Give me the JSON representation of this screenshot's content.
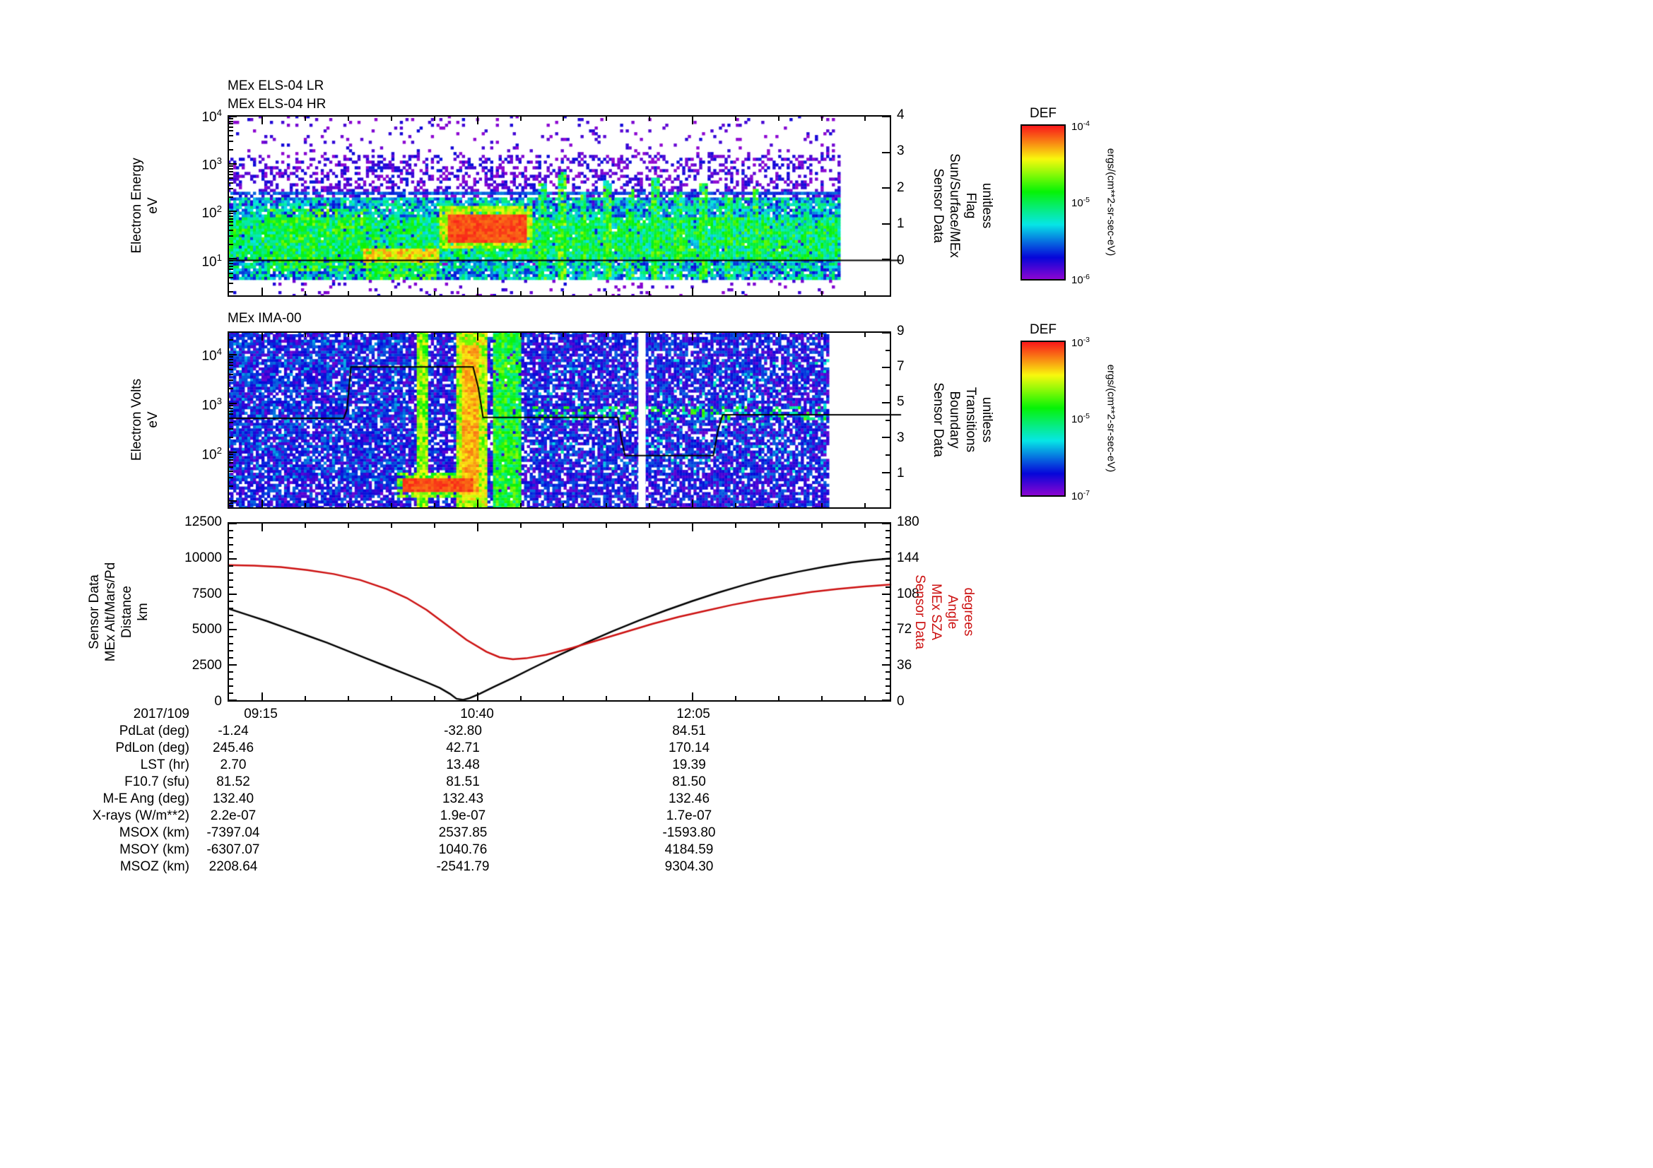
{
  "colors": {
    "red": "#cc1111",
    "black": "#000000"
  },
  "x_axis": {
    "date_label": "2017/109",
    "ticks": [
      {
        "label": "09:15",
        "x": 0.05
      },
      {
        "label": "10:40",
        "x": 0.376
      },
      {
        "label": "12:05",
        "x": 0.702
      }
    ],
    "minor_step": 0.0652
  },
  "chart_data": [
    {
      "id": "els",
      "type": "heatmap",
      "title_lines": [
        "MEx ELS-04 LR",
        "MEx ELS-04 HR"
      ],
      "ylabel_lines": [
        "Electron Energy",
        "eV"
      ],
      "y_log_range": [
        0.23,
        4.0
      ],
      "y_tick_exps": [
        4,
        3,
        2,
        1
      ],
      "data_end_x": 0.925,
      "seed": 1234,
      "right_axis": {
        "label_lines": [
          "Sensor Data",
          "Sun/Surface/MEx",
          "Flag",
          "unitless"
        ],
        "range": [
          -1,
          4
        ],
        "major_ticks": [
          4,
          3,
          2,
          1,
          0
        ],
        "minor_ticks": []
      },
      "overlay_line": {
        "points": [
          [
            0,
            0
          ],
          [
            1.015,
            0
          ]
        ]
      },
      "features": [
        {
          "x0": 0,
          "x1": 0.925,
          "y0": 0,
          "y1": 1,
          "base": 0.05,
          "rand": 0.18,
          "density": 0.08
        },
        {
          "x0": 0,
          "x1": 0.925,
          "y0": 0.5,
          "y1": 0.78,
          "base": 0.07,
          "rand": 0.2,
          "density": 0.3
        },
        {
          "x0": 0,
          "x1": 0.925,
          "y0": 0.1,
          "y1": 0.55,
          "base": 0.33,
          "rand": 0.4,
          "density": 0.9
        },
        {
          "x0": 0,
          "x1": 0.925,
          "y0": 0.2,
          "y1": 0.44,
          "base": 0.48,
          "rand": 0.35,
          "density": 0.88
        },
        {
          "x0": 0.06,
          "x1": 0.21,
          "y0": 0.14,
          "y1": 0.48,
          "base": 0.55,
          "rand": 0.3,
          "density": 0.55
        },
        {
          "x0": 0,
          "x1": 0.925,
          "y0": 0.555,
          "y1": 0.575,
          "base": 0.22,
          "rand": 0.12,
          "density": 0.95
        },
        {
          "x0": 0.21,
          "x1": 0.315,
          "y0": 0.1,
          "y1": 0.185,
          "base": 0.55,
          "rand": 0.3,
          "density": 0.9
        },
        {
          "x0": 0.205,
          "x1": 0.318,
          "y0": 0.185,
          "y1": 0.26,
          "base": 0.8,
          "rand": 0.2,
          "density": 0.95
        },
        {
          "x0": 0.32,
          "x1": 0.46,
          "y0": 0.26,
          "y1": 0.5,
          "base": 0.72,
          "rand": 0.25,
          "density": 0.92
        },
        {
          "x0": 0.33,
          "x1": 0.45,
          "y0": 0.3,
          "y1": 0.46,
          "base": 0.95,
          "rand": 0.08,
          "density": 1
        },
        {
          "x0": 0.468,
          "x1": 0.482,
          "y0": 0.1,
          "y1": 0.62,
          "base": 0.5,
          "rand": 0.4,
          "density": 0.85
        },
        {
          "x0": 0.498,
          "x1": 0.512,
          "y0": 0.1,
          "y1": 0.68,
          "base": 0.55,
          "rand": 0.4,
          "density": 0.85
        },
        {
          "x0": 0.53,
          "x1": 0.542,
          "y0": 0.1,
          "y1": 0.58,
          "base": 0.5,
          "rand": 0.4,
          "density": 0.8
        },
        {
          "x0": 0.565,
          "x1": 0.578,
          "y0": 0.1,
          "y1": 0.64,
          "base": 0.52,
          "rand": 0.4,
          "density": 0.85
        },
        {
          "x0": 0.6,
          "x1": 0.612,
          "y0": 0.1,
          "y1": 0.6,
          "base": 0.5,
          "rand": 0.4,
          "density": 0.8
        },
        {
          "x0": 0.638,
          "x1": 0.65,
          "y0": 0.1,
          "y1": 0.66,
          "base": 0.52,
          "rand": 0.4,
          "density": 0.85
        },
        {
          "x0": 0.672,
          "x1": 0.684,
          "y0": 0.1,
          "y1": 0.58,
          "base": 0.5,
          "rand": 0.4,
          "density": 0.8
        },
        {
          "x0": 0.71,
          "x1": 0.722,
          "y0": 0.1,
          "y1": 0.62,
          "base": 0.5,
          "rand": 0.4,
          "density": 0.8
        },
        {
          "x0": 0.748,
          "x1": 0.76,
          "y0": 0.1,
          "y1": 0.56,
          "base": 0.48,
          "rand": 0.4,
          "density": 0.8
        },
        {
          "x0": 0.79,
          "x1": 0.8,
          "y0": 0.1,
          "y1": 0.6,
          "base": 0.5,
          "rand": 0.4,
          "density": 0.8
        }
      ]
    },
    {
      "id": "ima",
      "type": "heatmap",
      "title_lines": [
        "MEx IMA-00"
      ],
      "ylabel_lines": [
        "Electron Volts",
        "eV"
      ],
      "y_log_range": [
        0.87,
        4.45
      ],
      "y_tick_exps": [
        4,
        3,
        2
      ],
      "data_end_x": 0.905,
      "gap_x": [
        0.619,
        0.63
      ],
      "seed": 9876,
      "right_axis": {
        "label_lines": [
          "Sensor Data",
          "Boundary",
          "Transitions",
          "unitless"
        ],
        "range": [
          -1,
          9
        ],
        "major_ticks": [
          9,
          7,
          5,
          3,
          1
        ],
        "minor_ticks": [
          8,
          6,
          4,
          2,
          0
        ]
      },
      "overlay_line": {
        "points": [
          [
            0,
            4.1
          ],
          [
            0.175,
            4.1
          ],
          [
            0.18,
            4.6
          ],
          [
            0.186,
            7.0
          ],
          [
            0.37,
            7.0
          ],
          [
            0.378,
            5.8
          ],
          [
            0.385,
            4.15
          ],
          [
            0.588,
            4.15
          ],
          [
            0.593,
            3.0
          ],
          [
            0.599,
            2.0
          ],
          [
            0.732,
            2.0
          ],
          [
            0.739,
            3.4
          ],
          [
            0.746,
            4.3
          ],
          [
            1.015,
            4.3
          ]
        ]
      },
      "features": [
        {
          "x0": 0,
          "x1": 0.905,
          "y0": 0,
          "y1": 1,
          "base": 0.14,
          "rand": 0.22,
          "density": 0.78
        },
        {
          "x0": 0,
          "x1": 0.27,
          "y0": 0.15,
          "y1": 0.95,
          "base": 0.18,
          "rand": 0.28,
          "density": 0.35
        },
        {
          "x0": 0.283,
          "x1": 0.303,
          "y0": 0,
          "y1": 1,
          "base": 0.68,
          "rand": 0.25,
          "density": 1
        },
        {
          "x0": 0.345,
          "x1": 0.39,
          "y0": 0,
          "y1": 1,
          "base": 0.72,
          "rand": 0.25,
          "density": 1
        },
        {
          "x0": 0.353,
          "x1": 0.377,
          "y0": 0.08,
          "y1": 0.92,
          "base": 0.85,
          "rand": 0.12,
          "density": 1
        },
        {
          "x0": 0.398,
          "x1": 0.443,
          "y0": 0,
          "y1": 1,
          "base": 0.55,
          "rand": 0.28,
          "density": 0.95
        },
        {
          "x0": 0.255,
          "x1": 0.38,
          "y0": 0.06,
          "y1": 0.2,
          "base": 0.65,
          "rand": 0.3,
          "density": 0.85
        },
        {
          "x0": 0.262,
          "x1": 0.372,
          "y0": 0.1,
          "y1": 0.165,
          "base": 0.95,
          "rand": 0.08,
          "density": 1
        },
        {
          "x0": 0.46,
          "x1": 0.9,
          "y0": 0.5,
          "y1": 0.575,
          "base": 0.5,
          "rand": 0.3,
          "density": 0.3
        },
        {
          "x0": 0.46,
          "x1": 0.905,
          "y0": 0.2,
          "y1": 0.85,
          "base": 0.28,
          "rand": 0.3,
          "density": 0.1
        }
      ]
    },
    {
      "id": "eph",
      "type": "line",
      "left_axis": {
        "label_lines": [
          "Sensor Data",
          "MEx Alt/Mars/Pd",
          "Distance",
          "km"
        ],
        "range": [
          0,
          12500
        ],
        "major_ticks": [
          12500,
          10000,
          7500,
          5000,
          2500,
          0
        ],
        "minor_step": 500
      },
      "right_axis": {
        "label_lines": [
          "Sensor Data",
          "MEx SZA",
          "Angle",
          "degrees"
        ],
        "range": [
          0,
          180
        ],
        "major_ticks": [
          180,
          144,
          108,
          72,
          36,
          0
        ],
        "minor_step": 7.2,
        "color": "#cc1111"
      },
      "series": [
        {
          "name": "MEx altitude (km)",
          "axis": "left",
          "color": "#000000",
          "points": [
            [
              0,
              6500
            ],
            [
              0.03,
              6050
            ],
            [
              0.06,
              5600
            ],
            [
              0.09,
              5100
            ],
            [
              0.12,
              4600
            ],
            [
              0.15,
              4100
            ],
            [
              0.18,
              3550
            ],
            [
              0.21,
              3000
            ],
            [
              0.24,
              2450
            ],
            [
              0.27,
              1900
            ],
            [
              0.3,
              1350
            ],
            [
              0.32,
              950
            ],
            [
              0.335,
              550
            ],
            [
              0.345,
              200
            ],
            [
              0.355,
              120
            ],
            [
              0.365,
              250
            ],
            [
              0.38,
              550
            ],
            [
              0.4,
              1000
            ],
            [
              0.43,
              1650
            ],
            [
              0.46,
              2350
            ],
            [
              0.5,
              3250
            ],
            [
              0.54,
              4100
            ],
            [
              0.58,
              4900
            ],
            [
              0.62,
              5650
            ],
            [
              0.66,
              6350
            ],
            [
              0.7,
              7000
            ],
            [
              0.74,
              7600
            ],
            [
              0.78,
              8150
            ],
            [
              0.82,
              8650
            ],
            [
              0.86,
              9050
            ],
            [
              0.9,
              9400
            ],
            [
              0.94,
              9700
            ],
            [
              0.97,
              9850
            ],
            [
              1,
              9980
            ]
          ]
        },
        {
          "name": "MEx SZA (degrees)",
          "axis": "right",
          "color": "#cc1111",
          "points": [
            [
              0,
              137
            ],
            [
              0.04,
              136.5
            ],
            [
              0.08,
              135
            ],
            [
              0.12,
              132
            ],
            [
              0.16,
              128
            ],
            [
              0.2,
              122
            ],
            [
              0.24,
              113
            ],
            [
              0.27,
              104
            ],
            [
              0.3,
              92
            ],
            [
              0.33,
              77
            ],
            [
              0.36,
              62
            ],
            [
              0.39,
              50
            ],
            [
              0.41,
              44.5
            ],
            [
              0.43,
              42.5
            ],
            [
              0.45,
              43.5
            ],
            [
              0.48,
              47
            ],
            [
              0.52,
              54
            ],
            [
              0.56,
              62
            ],
            [
              0.6,
              70
            ],
            [
              0.64,
              78
            ],
            [
              0.68,
              85
            ],
            [
              0.72,
              91
            ],
            [
              0.76,
              97
            ],
            [
              0.8,
              102
            ],
            [
              0.84,
              106
            ],
            [
              0.88,
              110
            ],
            [
              0.92,
              113
            ],
            [
              0.96,
              115.5
            ],
            [
              1,
              117.5
            ]
          ]
        }
      ]
    }
  ],
  "colorbars": [
    {
      "title": "DEF",
      "unit": "ergs/(cm**2-sr-sec-eV)",
      "tick_exps": [
        -4,
        -5,
        -6
      ]
    },
    {
      "title": "DEF",
      "unit": "ergs/(cm**2-sr-sec-eV)",
      "tick_exps": [
        -3,
        -5,
        -7
      ]
    }
  ],
  "table": {
    "rows": [
      {
        "label": "2017/109",
        "values": [
          "09:15",
          "10:40",
          "12:05"
        ],
        "time_row": true
      },
      {
        "label": "PdLat (deg)",
        "values": [
          "-1.24",
          "-32.80",
          "84.51"
        ]
      },
      {
        "label": "PdLon (deg)",
        "values": [
          "245.46",
          "42.71",
          "170.14"
        ]
      },
      {
        "label": "LST (hr)",
        "values": [
          "2.70",
          "13.48",
          "19.39"
        ]
      },
      {
        "label": "F10.7 (sfu)",
        "values": [
          "81.52",
          "81.51",
          "81.50"
        ]
      },
      {
        "label": "M-E Ang (deg)",
        "values": [
          "132.40",
          "132.43",
          "132.46"
        ]
      },
      {
        "label": "X-rays (W/m**2)",
        "values": [
          "2.2e-07",
          "1.9e-07",
          "1.7e-07"
        ]
      },
      {
        "label": "MSOX (km)",
        "values": [
          "-7397.04",
          "2537.85",
          "-1593.80"
        ]
      },
      {
        "label": "MSOY (km)",
        "values": [
          "-6307.07",
          "1040.76",
          "4184.59"
        ]
      },
      {
        "label": "MSOZ (km)",
        "values": [
          "2208.64",
          "-2541.79",
          "9304.30"
        ]
      }
    ]
  }
}
